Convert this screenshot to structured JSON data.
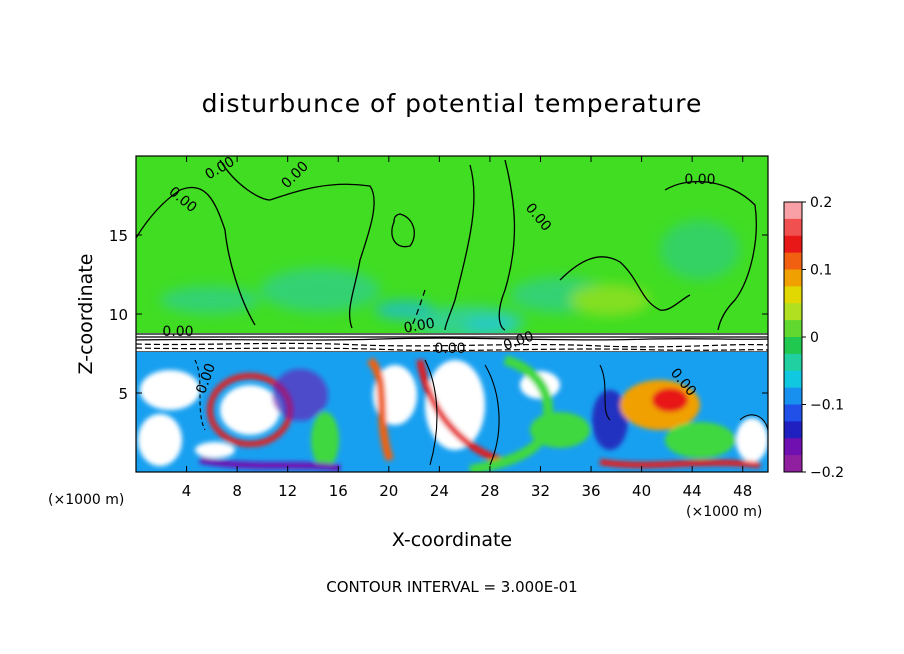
{
  "chart_data": {
    "type": "heatmap",
    "title": "disturbunce of potential temperature",
    "xlabel": "X-coordinate",
    "ylabel": "Z-coordinate",
    "x_unit_left": "(×1000 m)",
    "x_unit_right": "(×1000 m)",
    "footer": "CONTOUR INTERVAL = 3.000E-01",
    "xlim": [
      0,
      50
    ],
    "ylim": [
      0,
      20
    ],
    "x_ticks": [
      4,
      8,
      12,
      16,
      20,
      24,
      28,
      32,
      36,
      40,
      44,
      48
    ],
    "y_ticks": [
      5,
      10,
      15
    ],
    "contour_labels": [
      "0.00",
      "0.00",
      "0.00",
      "0.00",
      "0.00",
      "0.00",
      "0.00",
      "0.00",
      "0.00",
      "0.00",
      "0.00"
    ],
    "colorbar": {
      "range": [
        -0.2,
        0.2
      ],
      "ticks": [
        0.2,
        0.1,
        0,
        -0.1,
        -0.2
      ],
      "tick_labels": [
        "0.2",
        "0.1",
        "0",
        "−0.1",
        "−0.2"
      ],
      "colors": [
        "#f9a0a6",
        "#f05050",
        "#e81818",
        "#f06010",
        "#f0a000",
        "#e0d800",
        "#b0e020",
        "#60d830",
        "#20c850",
        "#20d0a0",
        "#10c8e0",
        "#1890f0",
        "#2050e8",
        "#2020c0",
        "#7010b0",
        "#9020a0"
      ]
    }
  }
}
